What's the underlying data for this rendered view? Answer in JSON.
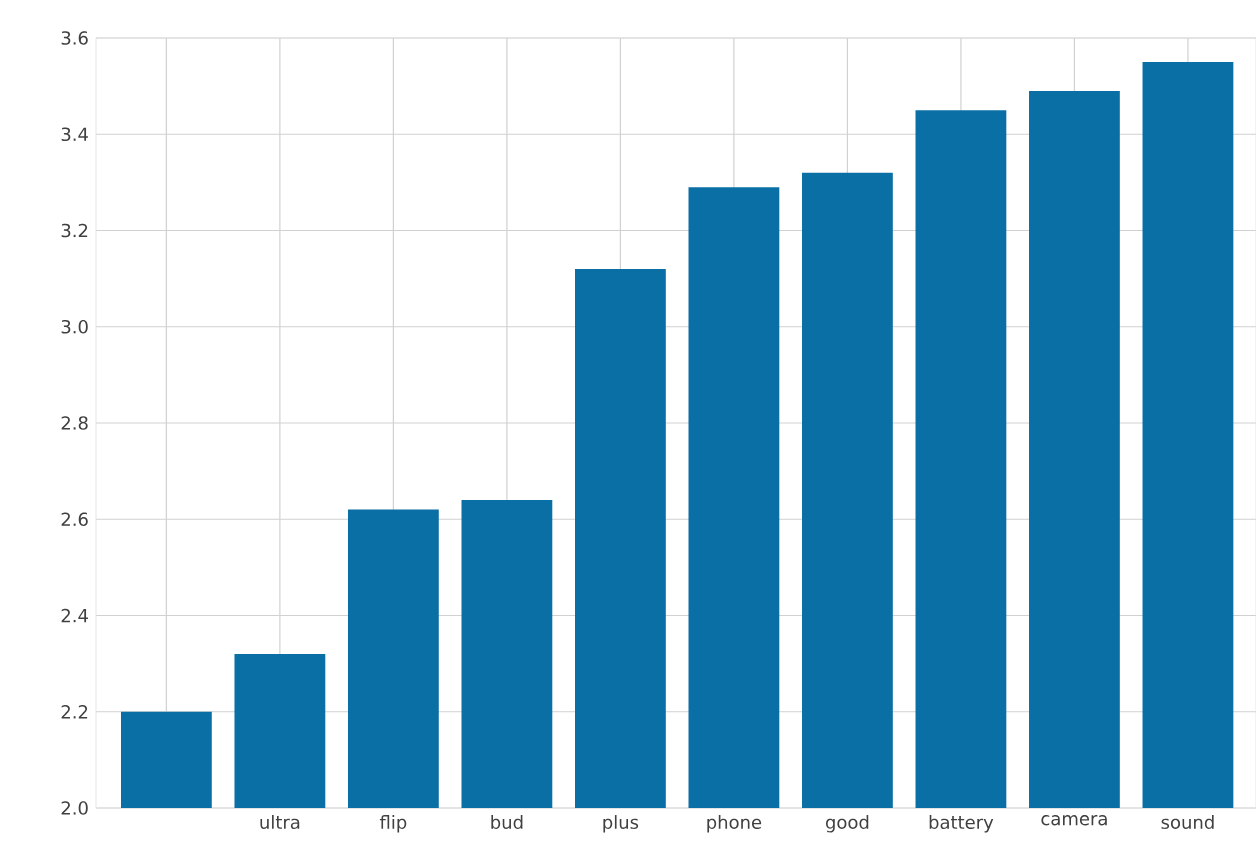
{
  "chart_data": {
    "type": "bar",
    "categories": [
      null,
      "ultra",
      "flip",
      "bud",
      "plus",
      "phone",
      "good",
      "battery",
      "camera",
      "sound"
    ],
    "values": [
      2.2,
      2.32,
      2.62,
      2.64,
      3.12,
      3.29,
      3.32,
      3.45,
      3.49,
      3.55
    ],
    "color": "#0a6fa5",
    "ylim": [
      2.0,
      3.6
    ],
    "yticks": [
      {
        "value": 2,
        "label": "2.0"
      },
      2.2,
      2.4,
      2.6,
      2.8,
      {
        "value": 3,
        "label": "3.0"
      },
      3.2,
      3.4,
      3.6
    ],
    "grid": true
  }
}
